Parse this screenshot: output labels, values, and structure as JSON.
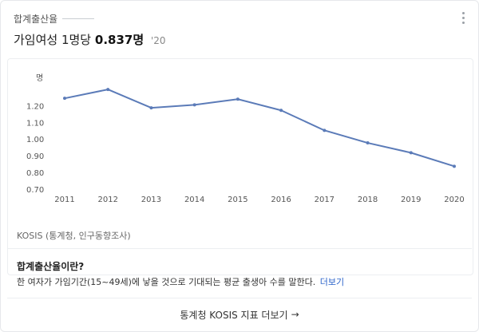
{
  "header": {
    "section_title": "합계출산율",
    "headline_prefix": "가임여성 1명당",
    "headline_value": "0.837명",
    "headline_year": "'20"
  },
  "source": "KOSIS (통계청, 인구동향조사)",
  "definition": {
    "title": "합계출산율이란?",
    "text": "한 여자가 가임기간(15~49세)에 낳을 것으로 기대되는 평균 출생아 수를 말한다.",
    "more_label": "더보기"
  },
  "footer": {
    "link_label": "통계청 KOSIS 지표 더보기",
    "arrow": "→"
  },
  "chart_data": {
    "type": "line",
    "title": "",
    "xlabel": "",
    "ylabel": "명",
    "x": [
      "2011",
      "2012",
      "2013",
      "2014",
      "2015",
      "2016",
      "2017",
      "2018",
      "2019",
      "2020"
    ],
    "series": [
      {
        "values": [
          1.244,
          1.297,
          1.187,
          1.205,
          1.239,
          1.172,
          1.052,
          0.977,
          0.918,
          0.837
        ]
      }
    ],
    "yticks": [
      "0.70",
      "0.80",
      "0.90",
      "1.00",
      "1.10",
      "1.20"
    ],
    "ylim": [
      0.7,
      1.35
    ],
    "color": "#5b7bb8",
    "grid": false
  }
}
